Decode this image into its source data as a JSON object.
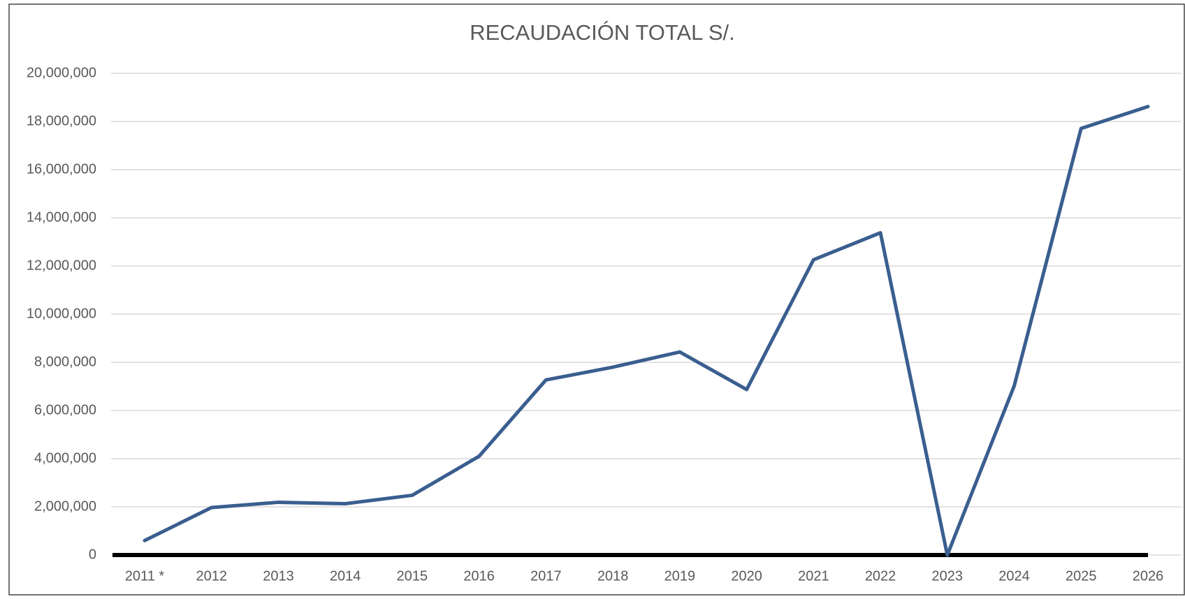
{
  "chart_data": {
    "type": "line",
    "title": "RECAUDACIÓN TOTAL S/.",
    "categories": [
      "2011 *",
      "2012",
      "2013",
      "2014",
      "2015",
      "2016",
      "2017",
      "2018",
      "2019",
      "2020",
      "2021",
      "2022",
      "2023",
      "2024",
      "2025",
      "2026"
    ],
    "series": [
      {
        "name": "Recaudación",
        "color": "#3a5e8f",
        "values": [
          600000,
          1970000,
          2190000,
          2130000,
          2480000,
          4100000,
          7270000,
          7800000,
          8430000,
          6870000,
          12260000,
          13380000,
          0,
          7020000,
          17710000,
          18620000
        ]
      }
    ],
    "ylim": [
      0,
      20000000
    ],
    "yticks": [
      0,
      {
        "value": 2000000,
        "label": "2,000,000"
      },
      {
        "value": 4000000,
        "label": "4,000,000"
      },
      {
        "value": 6000000,
        "label": "6,000,000"
      },
      {
        "value": 8000000,
        "label": "8,000,000"
      },
      {
        "value": 10000000,
        "label": "10,000,000"
      },
      {
        "value": 12000000,
        "label": "12,000,000"
      },
      {
        "value": 14000000,
        "label": "14,000,000"
      },
      {
        "value": 16000000,
        "label": "16,000,000"
      },
      {
        "value": 18000000,
        "label": "18,000,000"
      },
      {
        "value": 20000000,
        "label": "20,000,000"
      }
    ],
    "grid": true
  }
}
